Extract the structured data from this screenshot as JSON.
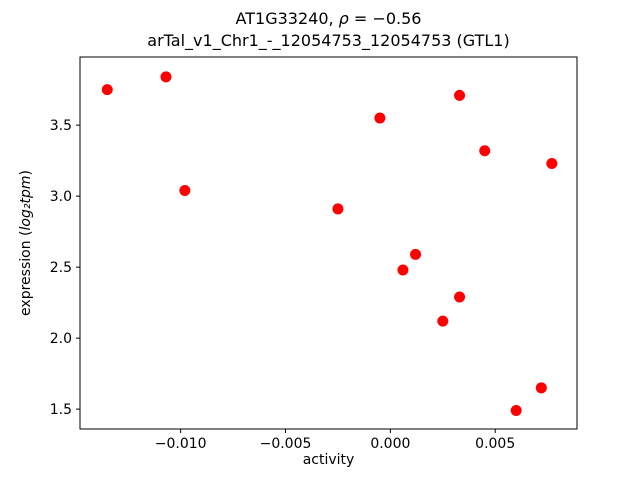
{
  "chart_data": {
    "type": "scatter",
    "title": "AT1G33240, ρ = −0.56",
    "title_parts": {
      "prefix": "AT1G33240, ",
      "rho": "ρ",
      "suffix": " = −0.56"
    },
    "subtitle": "arTal_v1_Chr1_-_12054753_12054753 (GTL1)",
    "xlabel": "activity",
    "ylabel": "expression (log₂tpm)",
    "ylabel_parts": {
      "prefix": "expression (",
      "math": "log₂tpm",
      "suffix": ")"
    },
    "xlim": [
      -0.0148,
      0.0089
    ],
    "ylim": [
      1.36,
      3.98
    ],
    "grid": false,
    "legend": "none",
    "x_ticks": {
      "values": [
        -0.01,
        -0.005,
        0.0,
        0.005
      ],
      "labels": [
        "−0.010",
        "−0.005",
        "0.000",
        "0.005"
      ]
    },
    "y_ticks": {
      "values": [
        1.5,
        2.0,
        2.5,
        3.0,
        3.5
      ],
      "labels": [
        "1.5",
        "2.0",
        "2.5",
        "3.0",
        "3.5"
      ]
    },
    "marker": {
      "color": "#ff0000",
      "radius": 5.5
    },
    "points": [
      [
        -0.0135,
        3.75
      ],
      [
        -0.0107,
        3.84
      ],
      [
        -0.0098,
        3.04
      ],
      [
        -0.0025,
        2.91
      ],
      [
        -0.0005,
        3.55
      ],
      [
        0.0006,
        2.48
      ],
      [
        0.0012,
        2.59
      ],
      [
        0.0025,
        2.12
      ],
      [
        0.0033,
        2.29
      ],
      [
        0.0033,
        3.71
      ],
      [
        0.0045,
        3.32
      ],
      [
        0.006,
        1.49
      ],
      [
        0.0072,
        1.65
      ],
      [
        0.0077,
        3.23
      ]
    ]
  }
}
